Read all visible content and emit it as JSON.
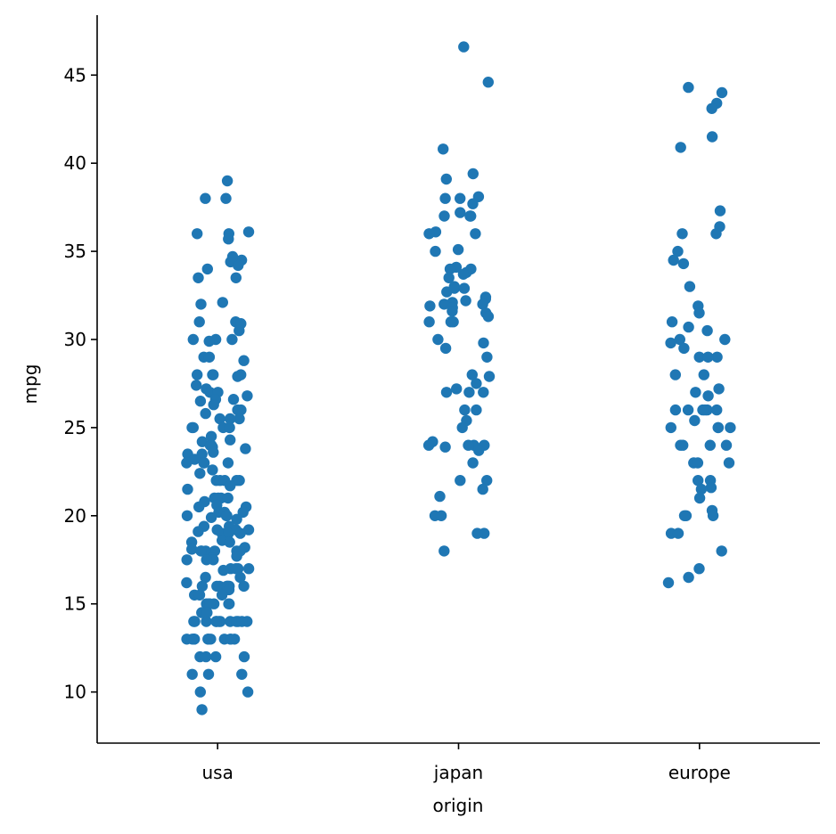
{
  "chart_data": {
    "type": "scatter",
    "subtype": "strip",
    "xlabel": "origin",
    "ylabel": "mpg",
    "categories": [
      "usa",
      "japan",
      "europe"
    ],
    "ylim": [
      7.1,
      48.4
    ],
    "yticks": [
      "10",
      "15",
      "20",
      "25",
      "30",
      "35",
      "40",
      "45"
    ],
    "grid": false,
    "color": "#1f77b4",
    "points": [
      {
        "category": "usa",
        "values": [
          39.0,
          38.0,
          38.0,
          36.1,
          36.0,
          35.7,
          36.0,
          34.5,
          34.4,
          34.2,
          34.7,
          34.0,
          33.5,
          33.5,
          32.1,
          32.0,
          31.0,
          31.0,
          30.9,
          30.5,
          30.0,
          30.0,
          30.0,
          29.9,
          29.0,
          29.0,
          28.8,
          28.0,
          28.0,
          28.0,
          27.9,
          28.0,
          27.4,
          27.2,
          27.0,
          27.0,
          26.8,
          26.6,
          26.6,
          26.5,
          26.3,
          26.0,
          26.0,
          25.8,
          25.5,
          25.5,
          25.5,
          25.0,
          25.0,
          25.0,
          25.0,
          24.5,
          24.3,
          24.2,
          24.0,
          24.0,
          23.9,
          23.8,
          23.6,
          23.5,
          23.5,
          23.2,
          23.0,
          23.0,
          23.0,
          23.0,
          22.6,
          22.4,
          22.0,
          22.0,
          22.0,
          22.0,
          22.0,
          21.7,
          21.5,
          21.0,
          21.0,
          21.0,
          21.0,
          20.8,
          20.6,
          20.5,
          20.5,
          20.2,
          20.2,
          20.2,
          20.0,
          20.0,
          20.0,
          19.9,
          19.8,
          19.4,
          19.4,
          19.2,
          19.2,
          19.2,
          19.1,
          19.0,
          19.0,
          19.0,
          18.6,
          18.5,
          18.5,
          18.2,
          18.1,
          18.0,
          18.0,
          18.0,
          18.0,
          18.0,
          18.0,
          17.7,
          17.6,
          17.5,
          17.5,
          17.5,
          17.0,
          17.0,
          17.0,
          17.0,
          16.9,
          16.5,
          16.5,
          16.2,
          16.0,
          16.0,
          16.0,
          16.0,
          16.0,
          16.0,
          16.0,
          16.0,
          15.8,
          15.5,
          15.5,
          15.5,
          15.0,
          15.0,
          15.0,
          15.0,
          15.0,
          15.0,
          14.5,
          14.5,
          14.0,
          14.0,
          14.0,
          14.0,
          14.0,
          14.0,
          14.0,
          14.0,
          14.0,
          14.0,
          14.0,
          14.0,
          13.0,
          13.0,
          13.0,
          13.0,
          13.0,
          13.0,
          13.0,
          13.0,
          13.0,
          13.0,
          13.0,
          13.0,
          12.0,
          12.0,
          12.0,
          12.0,
          11.0,
          11.0,
          11.0,
          10.0,
          10.0,
          9.0
        ]
      },
      {
        "category": "japan",
        "values": [
          46.6,
          44.6,
          40.8,
          39.4,
          39.1,
          38.1,
          38.0,
          38.0,
          37.7,
          37.2,
          37.0,
          37.0,
          37.0,
          36.1,
          36.0,
          36.0,
          35.0,
          35.1,
          34.1,
          34.0,
          34.0,
          33.8,
          33.7,
          33.5,
          33.0,
          32.9,
          32.9,
          32.7,
          32.4,
          32.3,
          32.2,
          32.1,
          32.0,
          32.0,
          31.9,
          31.8,
          31.6,
          31.5,
          31.3,
          31.0,
          31.0,
          31.0,
          30.0,
          29.8,
          29.5,
          29.0,
          28.0,
          27.9,
          27.5,
          27.2,
          27.0,
          27.0,
          27.0,
          26.0,
          26.0,
          25.4,
          25.0,
          24.2,
          24.0,
          24.0,
          24.0,
          24.0,
          23.9,
          23.7,
          23.0,
          22.0,
          22.0,
          21.5,
          21.1,
          20.0,
          20.0,
          19.0,
          19.0,
          18.0
        ]
      },
      {
        "category": "europe",
        "values": [
          44.3,
          44.0,
          43.4,
          43.1,
          41.5,
          40.9,
          37.3,
          36.4,
          36.0,
          36.0,
          35.0,
          34.5,
          34.3,
          33.0,
          31.9,
          31.5,
          31.0,
          30.7,
          30.5,
          30.0,
          30.0,
          29.8,
          29.5,
          29.0,
          29.0,
          29.0,
          28.0,
          28.0,
          27.2,
          27.0,
          26.8,
          26.0,
          26.0,
          26.0,
          26.0,
          26.0,
          26.0,
          25.4,
          25.0,
          25.0,
          25.0,
          25.0,
          24.0,
          24.0,
          24.0,
          24.0,
          23.0,
          23.0,
          23.0,
          22.0,
          22.0,
          21.6,
          21.5,
          21.0,
          20.3,
          20.0,
          20.0,
          20.0,
          19.0,
          19.0,
          18.0,
          17.0,
          16.5,
          16.2
        ]
      }
    ]
  }
}
